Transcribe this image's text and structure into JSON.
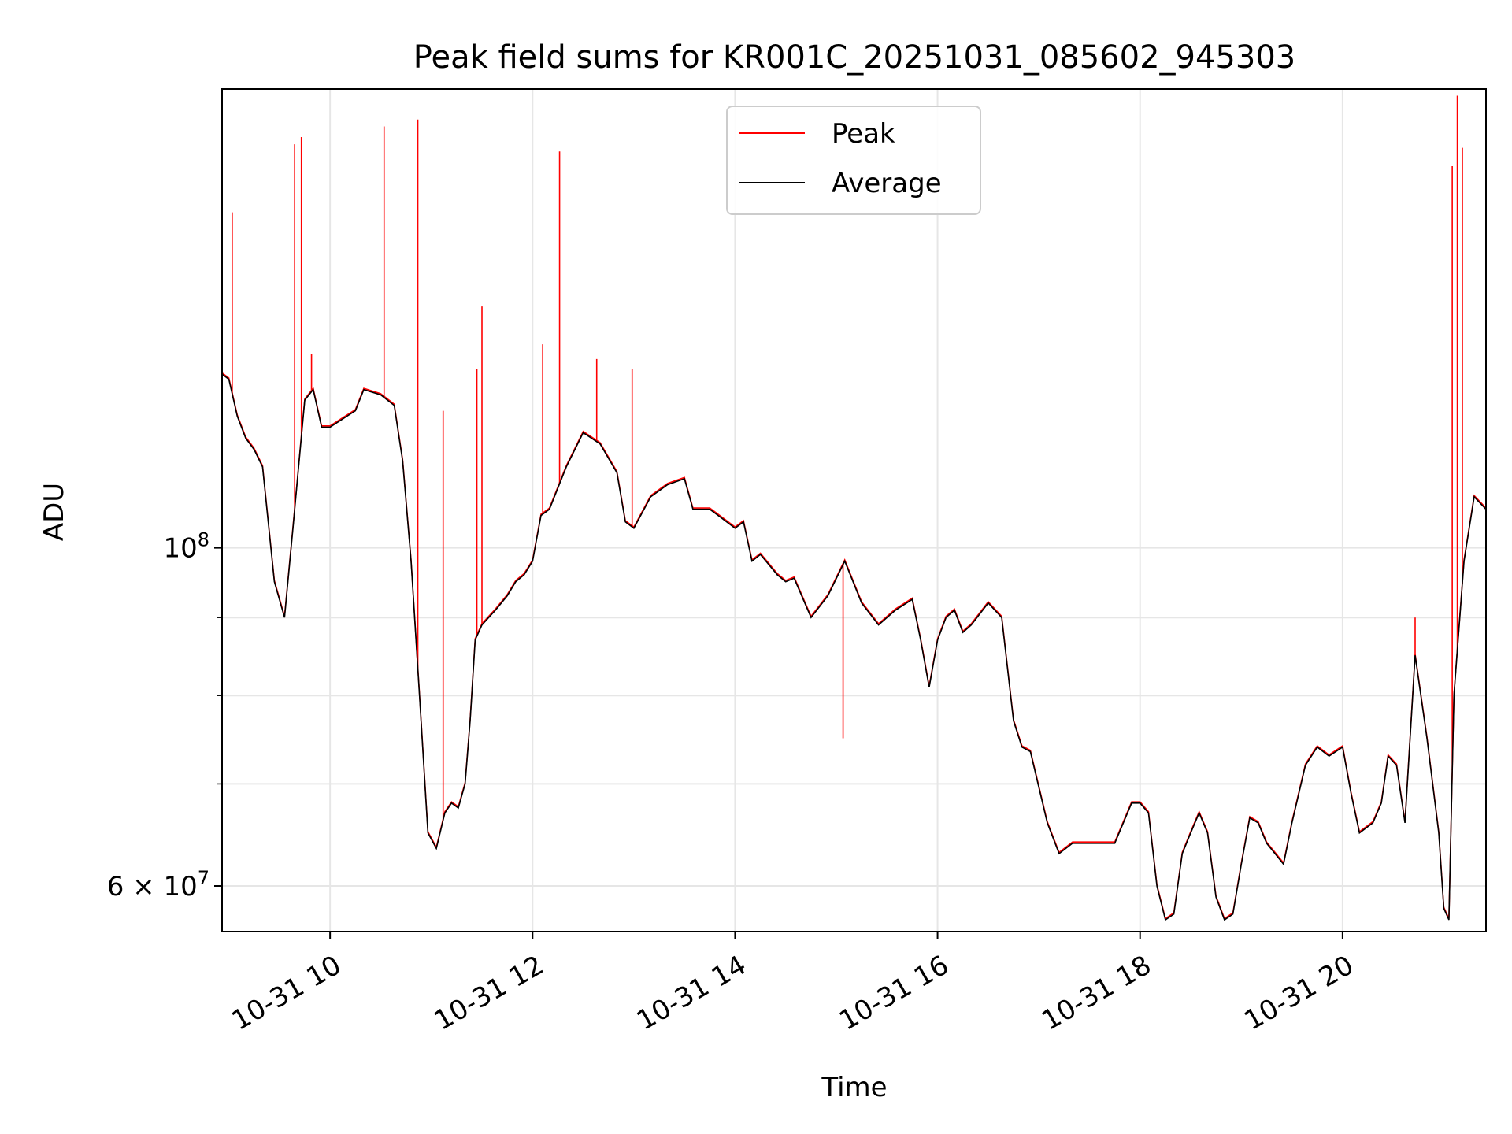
{
  "chart_data": {
    "type": "line",
    "title": "Peak field sums for KR001C_20251031_085602_945303",
    "xlabel": "Time",
    "ylabel": "ADU",
    "y_scale": "log",
    "ylim": [
      56000000,
      200000000
    ],
    "xlim": [
      "2025-10-31 08:56",
      "2025-10-31 21:25"
    ],
    "grid": true,
    "legend_position": "top-center",
    "x_ticks": [
      {
        "t": "2025-10-31 10:00",
        "label": "10-31 10"
      },
      {
        "t": "2025-10-31 12:00",
        "label": "10-31 12"
      },
      {
        "t": "2025-10-31 14:00",
        "label": "10-31 14"
      },
      {
        "t": "2025-10-31 16:00",
        "label": "10-31 16"
      },
      {
        "t": "2025-10-31 18:00",
        "label": "10-31 18"
      },
      {
        "t": "2025-10-31 20:00",
        "label": "10-31 20"
      }
    ],
    "y_major_ticks": [
      {
        "v": 60000000,
        "label_main": "6 × 10",
        "label_exp": "7"
      },
      {
        "v": 100000000,
        "label_main": "10",
        "label_exp": "8"
      }
    ],
    "y_minor_ticks": [
      70000000,
      80000000,
      90000000
    ],
    "series": [
      {
        "name": "Average",
        "color": "#000000",
        "points": [
          [
            "2025-10-31 08:56",
            130000000
          ],
          [
            "2025-10-31 09:00",
            129000000
          ],
          [
            "2025-10-31 09:05",
            122000000
          ],
          [
            "2025-10-31 09:10",
            118000000
          ],
          [
            "2025-10-31 09:15",
            116000000
          ],
          [
            "2025-10-31 09:20",
            113000000
          ],
          [
            "2025-10-31 09:27",
            95000000
          ],
          [
            "2025-10-31 09:33",
            90000000
          ],
          [
            "2025-10-31 09:38",
            103000000
          ],
          [
            "2025-10-31 09:45",
            125000000
          ],
          [
            "2025-10-31 09:50",
            127000000
          ],
          [
            "2025-10-31 09:55",
            120000000
          ],
          [
            "2025-10-31 10:00",
            120000000
          ],
          [
            "2025-10-31 10:10",
            122000000
          ],
          [
            "2025-10-31 10:15",
            123000000
          ],
          [
            "2025-10-31 10:20",
            127000000
          ],
          [
            "2025-10-31 10:30",
            126000000
          ],
          [
            "2025-10-31 10:38",
            124000000
          ],
          [
            "2025-10-31 10:43",
            114000000
          ],
          [
            "2025-10-31 10:48",
            98000000
          ],
          [
            "2025-10-31 10:53",
            80000000
          ],
          [
            "2025-10-31 10:58",
            65000000
          ],
          [
            "2025-10-31 11:03",
            63500000
          ],
          [
            "2025-10-31 11:08",
            67000000
          ],
          [
            "2025-10-31 11:12",
            68000000
          ],
          [
            "2025-10-31 11:16",
            67500000
          ],
          [
            "2025-10-31 11:20",
            70000000
          ],
          [
            "2025-10-31 11:23",
            77000000
          ],
          [
            "2025-10-31 11:26",
            87000000
          ],
          [
            "2025-10-31 11:30",
            89000000
          ],
          [
            "2025-10-31 11:38",
            91000000
          ],
          [
            "2025-10-31 11:45",
            93000000
          ],
          [
            "2025-10-31 11:50",
            95000000
          ],
          [
            "2025-10-31 11:55",
            96000000
          ],
          [
            "2025-10-31 12:00",
            98000000
          ],
          [
            "2025-10-31 12:05",
            105000000
          ],
          [
            "2025-10-31 12:10",
            106000000
          ],
          [
            "2025-10-31 12:20",
            113000000
          ],
          [
            "2025-10-31 12:30",
            119000000
          ],
          [
            "2025-10-31 12:40",
            117000000
          ],
          [
            "2025-10-31 12:50",
            112000000
          ],
          [
            "2025-10-31 12:55",
            104000000
          ],
          [
            "2025-10-31 13:00",
            103000000
          ],
          [
            "2025-10-31 13:10",
            108000000
          ],
          [
            "2025-10-31 13:20",
            110000000
          ],
          [
            "2025-10-31 13:30",
            111000000
          ],
          [
            "2025-10-31 13:35",
            106000000
          ],
          [
            "2025-10-31 13:45",
            106000000
          ],
          [
            "2025-10-31 13:50",
            105000000
          ],
          [
            "2025-10-31 14:00",
            103000000
          ],
          [
            "2025-10-31 14:05",
            104000000
          ],
          [
            "2025-10-31 14:10",
            98000000
          ],
          [
            "2025-10-31 14:15",
            99000000
          ],
          [
            "2025-10-31 14:25",
            96000000
          ],
          [
            "2025-10-31 14:30",
            95000000
          ],
          [
            "2025-10-31 14:35",
            95500000
          ],
          [
            "2025-10-31 14:45",
            90000000
          ],
          [
            "2025-10-31 14:55",
            93000000
          ],
          [
            "2025-10-31 15:05",
            98000000
          ],
          [
            "2025-10-31 15:15",
            92000000
          ],
          [
            "2025-10-31 15:25",
            89000000
          ],
          [
            "2025-10-31 15:35",
            91000000
          ],
          [
            "2025-10-31 15:45",
            92500000
          ],
          [
            "2025-10-31 15:50",
            87000000
          ],
          [
            "2025-10-31 15:55",
            81000000
          ],
          [
            "2025-10-31 16:00",
            87000000
          ],
          [
            "2025-10-31 16:05",
            90000000
          ],
          [
            "2025-10-31 16:10",
            91000000
          ],
          [
            "2025-10-31 16:15",
            88000000
          ],
          [
            "2025-10-31 16:20",
            89000000
          ],
          [
            "2025-10-31 16:30",
            92000000
          ],
          [
            "2025-10-31 16:38",
            90000000
          ],
          [
            "2025-10-31 16:45",
            77000000
          ],
          [
            "2025-10-31 16:50",
            74000000
          ],
          [
            "2025-10-31 16:55",
            73500000
          ],
          [
            "2025-10-31 17:05",
            66000000
          ],
          [
            "2025-10-31 17:12",
            63000000
          ],
          [
            "2025-10-31 17:20",
            64000000
          ],
          [
            "2025-10-31 17:35",
            64000000
          ],
          [
            "2025-10-31 17:45",
            64000000
          ],
          [
            "2025-10-31 17:55",
            68000000
          ],
          [
            "2025-10-31 18:00",
            68000000
          ],
          [
            "2025-10-31 18:05",
            67000000
          ],
          [
            "2025-10-31 18:10",
            60000000
          ],
          [
            "2025-10-31 18:15",
            57000000
          ],
          [
            "2025-10-31 18:20",
            57500000
          ],
          [
            "2025-10-31 18:25",
            63000000
          ],
          [
            "2025-10-31 18:30",
            65000000
          ],
          [
            "2025-10-31 18:35",
            67000000
          ],
          [
            "2025-10-31 18:40",
            65000000
          ],
          [
            "2025-10-31 18:45",
            59000000
          ],
          [
            "2025-10-31 18:50",
            57000000
          ],
          [
            "2025-10-31 18:55",
            57500000
          ],
          [
            "2025-10-31 19:00",
            62000000
          ],
          [
            "2025-10-31 19:05",
            66500000
          ],
          [
            "2025-10-31 19:10",
            66000000
          ],
          [
            "2025-10-31 19:15",
            64000000
          ],
          [
            "2025-10-31 19:20",
            63000000
          ],
          [
            "2025-10-31 19:25",
            62000000
          ],
          [
            "2025-10-31 19:30",
            66000000
          ],
          [
            "2025-10-31 19:38",
            72000000
          ],
          [
            "2025-10-31 19:45",
            74000000
          ],
          [
            "2025-10-31 19:52",
            73000000
          ],
          [
            "2025-10-31 20:00",
            74000000
          ],
          [
            "2025-10-31 20:05",
            69000000
          ],
          [
            "2025-10-31 20:10",
            65000000
          ],
          [
            "2025-10-31 20:18",
            66000000
          ],
          [
            "2025-10-31 20:23",
            68000000
          ],
          [
            "2025-10-31 20:27",
            73000000
          ],
          [
            "2025-10-31 20:32",
            72000000
          ],
          [
            "2025-10-31 20:37",
            66000000
          ],
          [
            "2025-10-31 20:43",
            85000000
          ],
          [
            "2025-10-31 20:50",
            75000000
          ],
          [
            "2025-10-31 20:57",
            65000000
          ],
          [
            "2025-10-31 21:00",
            58000000
          ],
          [
            "2025-10-31 21:03",
            57000000
          ],
          [
            "2025-10-31 21:06",
            80000000
          ],
          [
            "2025-10-31 21:12",
            98000000
          ],
          [
            "2025-10-31 21:18",
            108000000
          ],
          [
            "2025-10-31 21:25",
            106000000
          ]
        ]
      },
      {
        "name": "Peak",
        "color": "#ff0000",
        "spikes": [
          [
            "2025-10-31 09:02",
            166000000
          ],
          [
            "2025-10-31 09:39",
            184000000
          ],
          [
            "2025-10-31 09:43",
            186000000
          ],
          [
            "2025-10-31 09:49",
            134000000
          ],
          [
            "2025-10-31 10:32",
            189000000
          ],
          [
            "2025-10-31 10:52",
            191000000
          ],
          [
            "2025-10-31 11:07",
            123000000
          ],
          [
            "2025-10-31 11:27",
            131000000
          ],
          [
            "2025-10-31 11:30",
            144000000
          ],
          [
            "2025-10-31 12:06",
            136000000
          ],
          [
            "2025-10-31 12:16",
            182000000
          ],
          [
            "2025-10-31 12:38",
            133000000
          ],
          [
            "2025-10-31 12:59",
            131000000
          ],
          [
            "2025-10-31 15:04",
            75000000
          ],
          [
            "2025-10-31 20:43",
            90000000
          ],
          [
            "2025-10-31 21:05",
            178000000
          ],
          [
            "2025-10-31 21:08",
            198000000
          ],
          [
            "2025-10-31 21:11",
            183000000
          ]
        ]
      }
    ]
  }
}
